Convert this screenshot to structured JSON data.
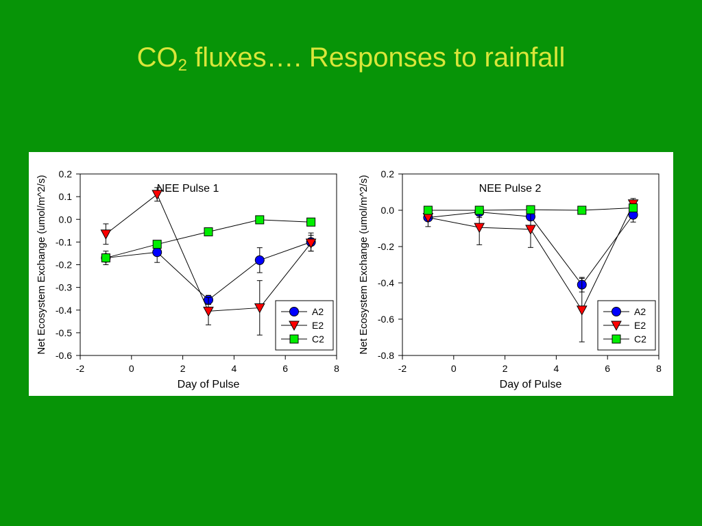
{
  "slide": {
    "title_main": "CO",
    "title_sub": "2",
    "title_rest": " fluxes…. Responses to rainfall"
  },
  "chart_data": [
    {
      "type": "scatter",
      "title": "NEE Pulse 1",
      "xlabel": "Day of Pulse",
      "ylabel": "Net Ecosystem Exchange (umol/m^2/s)",
      "xlim": [
        -2,
        8
      ],
      "ylim": [
        -0.6,
        0.2
      ],
      "xticks": [
        -2,
        0,
        2,
        4,
        6,
        8
      ],
      "yticks": [
        0.2,
        0.1,
        0.0,
        -0.1,
        -0.2,
        -0.3,
        -0.4,
        -0.5,
        -0.6
      ],
      "ytick_decimals": 1,
      "legend_position": "bottom-right",
      "series": [
        {
          "name": "A2",
          "marker": "circle",
          "color": "#0000ff",
          "x": [
            -1,
            1,
            3,
            5,
            7
          ],
          "y": [
            -0.17,
            -0.145,
            -0.355,
            -0.18,
            -0.1
          ],
          "err": [
            0,
            0.045,
            0.02,
            0.055,
            0.04
          ]
        },
        {
          "name": "E2",
          "marker": "triangle-down",
          "color": "#ff0000",
          "x": [
            -1,
            1,
            3,
            5,
            7
          ],
          "y": [
            -0.065,
            0.11,
            -0.405,
            -0.39,
            -0.105
          ],
          "err": [
            0.045,
            0.03,
            0.06,
            0.12,
            0.035
          ]
        },
        {
          "name": "C2",
          "marker": "square",
          "color": "#00ee00",
          "x": [
            -1,
            1,
            3,
            5,
            7
          ],
          "y": [
            -0.17,
            -0.11,
            -0.055,
            -0.002,
            -0.012
          ],
          "err": [
            0.03,
            0,
            0,
            0,
            0
          ]
        }
      ]
    },
    {
      "type": "scatter",
      "title": "NEE Pulse 2",
      "xlabel": "Day of Pulse",
      "ylabel": "Net Ecosystem Exchange (umol/m^2/s)",
      "xlim": [
        -2,
        8
      ],
      "ylim": [
        -0.8,
        0.2
      ],
      "xticks": [
        -2,
        0,
        2,
        4,
        6,
        8
      ],
      "yticks": [
        0.2,
        0.0,
        -0.2,
        -0.4,
        -0.6,
        -0.8
      ],
      "ytick_decimals": 1,
      "legend_position": "bottom-right",
      "series": [
        {
          "name": "A2",
          "marker": "circle",
          "color": "#0000ff",
          "x": [
            -1,
            1,
            3,
            5,
            7
          ],
          "y": [
            -0.04,
            -0.01,
            -0.035,
            -0.41,
            -0.025
          ],
          "err": [
            0.05,
            0.03,
            0,
            0.04,
            0.04
          ]
        },
        {
          "name": "E2",
          "marker": "triangle-down",
          "color": "#ff0000",
          "x": [
            -1,
            1,
            3,
            5,
            7
          ],
          "y": [
            -0.04,
            -0.095,
            -0.105,
            -0.55,
            0.035
          ],
          "err": [
            0,
            0.095,
            0.1,
            0.175,
            0.03
          ]
        },
        {
          "name": "C2",
          "marker": "square",
          "color": "#00ee00",
          "x": [
            -1,
            1,
            3,
            5,
            7
          ],
          "y": [
            0.0,
            0.0,
            0.003,
            0.0,
            0.013
          ],
          "err": [
            0,
            0,
            0,
            0,
            0
          ]
        }
      ]
    }
  ]
}
